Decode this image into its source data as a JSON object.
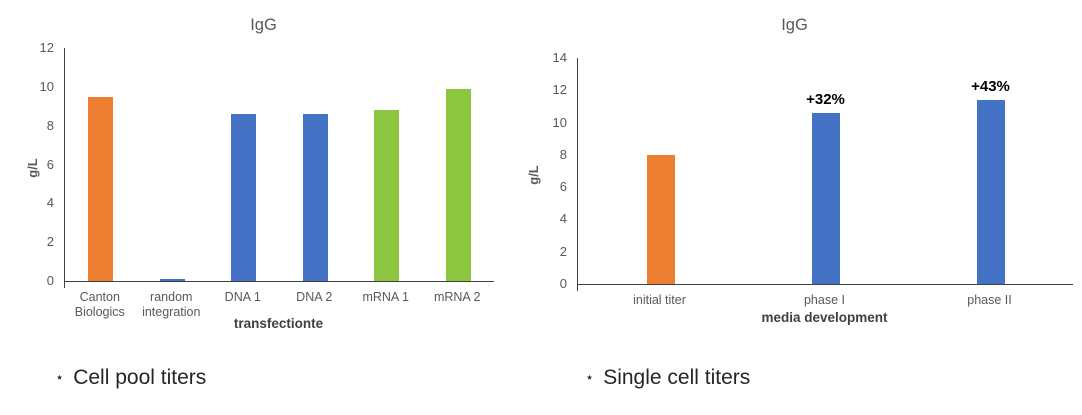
{
  "figure": {
    "background": "#ffffff",
    "axis_color": "#404040"
  },
  "palette": {
    "orange": "#ED7D31",
    "blue": "#4472C4",
    "green": "#8CC63F"
  },
  "text_colors": {
    "title": "#595959",
    "ticks": "#595959",
    "axis_title": "#404040",
    "caption": "#262626",
    "bar_label": "#000000"
  },
  "chart_data": [
    {
      "type": "bar",
      "title": "IgG",
      "ylabel": "g/L",
      "xlabel": "transfectionte",
      "categories": [
        "Canton Biologics",
        "random integration",
        "DNA 1",
        "DNA 2",
        "mRNA 1",
        "mRNA 2"
      ],
      "values": [
        9.5,
        0.1,
        8.6,
        8.6,
        8.8,
        9.9
      ],
      "bar_colors": [
        "orange",
        "blue",
        "blue",
        "blue",
        "green",
        "green"
      ],
      "bar_labels": [
        "",
        "",
        "",
        "",
        "",
        ""
      ],
      "ylim": [
        0,
        12
      ],
      "ytick_step": 2,
      "grid": false,
      "legend": "none",
      "caption_marker": "⋆",
      "caption_text": "Cell pool titers"
    },
    {
      "type": "bar",
      "title": "IgG",
      "ylabel": "g/L",
      "xlabel": "media development",
      "categories": [
        "initial titer",
        "phase I",
        "phase II"
      ],
      "values": [
        8,
        10.6,
        11.4
      ],
      "bar_colors": [
        "orange",
        "blue",
        "blue"
      ],
      "bar_labels": [
        "",
        "+32%",
        "+43%"
      ],
      "ylim": [
        0,
        14
      ],
      "ytick_step": 2,
      "grid": false,
      "legend": "none",
      "caption_marker": "⋆",
      "caption_text": "Single cell titers"
    }
  ]
}
